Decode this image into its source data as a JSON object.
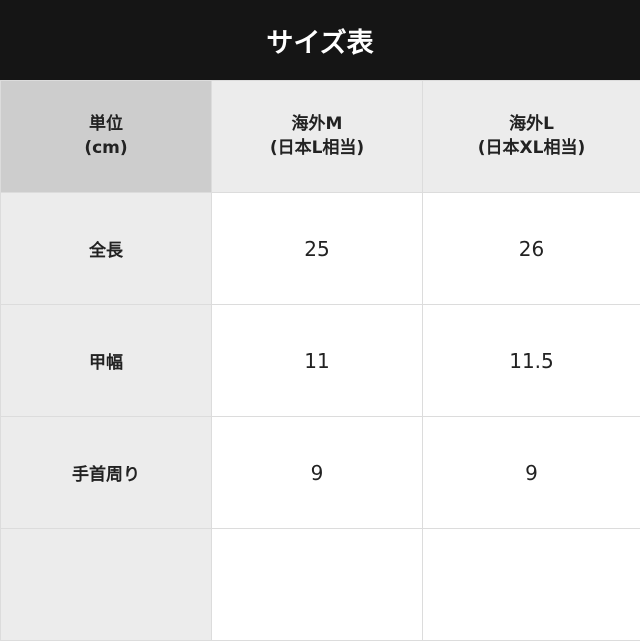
{
  "title": "サイズ表",
  "header": {
    "unit_line1": "単位",
    "unit_line2": "(cm)",
    "col1_line1": "海外M",
    "col1_line2": "(日本L相当)",
    "col2_line1": "海外L",
    "col2_line2": "(日本XL相当)"
  },
  "rows": [
    {
      "label": "全長",
      "m": "25",
      "l": "26"
    },
    {
      "label": "甲幅",
      "m": "11",
      "l": "11.5"
    },
    {
      "label": "手首周り",
      "m": "9",
      "l": "9"
    },
    {
      "label": "",
      "m": "",
      "l": ""
    }
  ]
}
